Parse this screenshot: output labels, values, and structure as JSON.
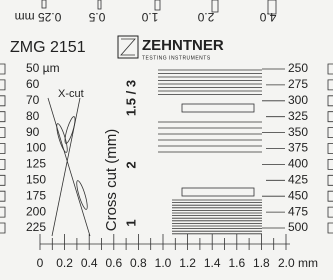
{
  "top_labels": [
    "0.25 mm",
    "0.5",
    "1.0",
    "2.0",
    "4.0"
  ],
  "model": "ZMG 2151",
  "brand": {
    "name": "ZEHNTNER",
    "tagline": "TESTING INSTRUMENTS"
  },
  "left_scale": [
    "50 µm",
    "60",
    "70",
    "80",
    "90",
    "100",
    "125",
    "150",
    "175",
    "200",
    "225"
  ],
  "right_scale": [
    "250",
    "275",
    "300",
    "325",
    "350",
    "375",
    "400",
    "425",
    "450",
    "475",
    "500"
  ],
  "x_cut": "X-cut",
  "cross_cut": {
    "title": "Cross cut (mm)",
    "labels": [
      "1.5 / 3",
      "2",
      "1"
    ]
  },
  "ruler": [
    "0",
    "0.2",
    "0.4",
    "0.6",
    "0.8",
    "1.0",
    "1.2",
    "1.4",
    "1.6",
    "1.8",
    "2.0 mm"
  ]
}
